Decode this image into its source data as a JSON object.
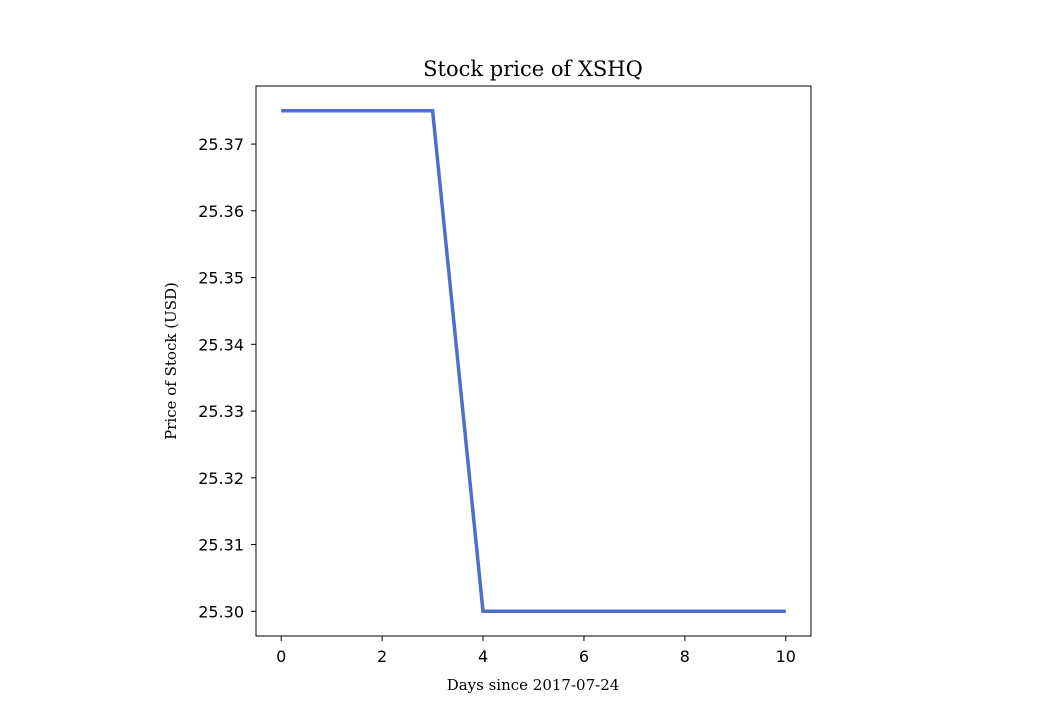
{
  "chart_data": {
    "type": "line",
    "title": "Stock price of XSHQ",
    "xlabel": "Days since 2017-07-24",
    "ylabel": "Price of Stock (USD)",
    "xlim": [
      -0.5,
      10.5
    ],
    "ylim": [
      25.2963,
      25.3787
    ],
    "xticks": [
      0,
      2,
      4,
      6,
      8,
      10
    ],
    "xtick_labels": [
      "0",
      "2",
      "4",
      "6",
      "8",
      "10"
    ],
    "yticks": [
      25.3,
      25.31,
      25.32,
      25.33,
      25.34,
      25.35,
      25.36,
      25.37
    ],
    "ytick_labels": [
      "25.30",
      "25.31",
      "25.32",
      "25.33",
      "25.34",
      "25.35",
      "25.36",
      "25.37"
    ],
    "grid": false,
    "series": [
      {
        "color": "#4c6fcc",
        "x": [
          0,
          1,
          2,
          3,
          4,
          5,
          6,
          7,
          8,
          9,
          10
        ],
        "y": [
          25.375,
          25.375,
          25.375,
          25.375,
          25.3,
          25.3,
          25.3,
          25.3,
          25.3,
          25.3,
          25.3
        ]
      }
    ]
  }
}
